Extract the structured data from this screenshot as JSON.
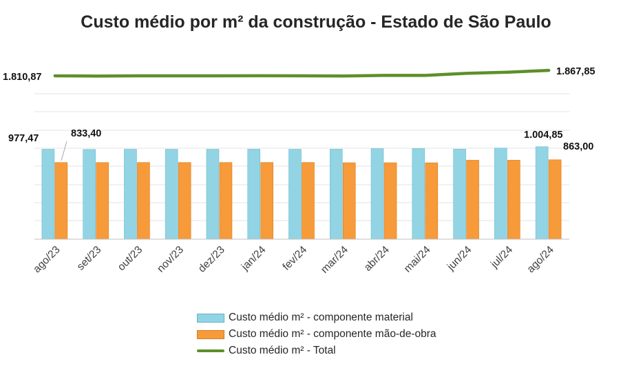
{
  "chart_data": {
    "type": "bar",
    "title": "Custo médio por m² da construção - Estado de São Paulo",
    "categories": [
      "ago/23",
      "set/23",
      "out/23",
      "nov/23",
      "dez/23",
      "jan/24",
      "fev/24",
      "mar/24",
      "abr/24",
      "mai/24",
      "jun/24",
      "jul/24",
      "ago/24"
    ],
    "series": [
      {
        "name": "Custo médio m² - componente material",
        "type": "bar",
        "color": "#92d4e4",
        "values": [
          977.47,
          975.2,
          977.6,
          977.3,
          977.5,
          978.0,
          977.4,
          978.1,
          984.3,
          985.2,
          978.5,
          990.2,
          1004.85
        ]
      },
      {
        "name": "Custo médio m² - componente mão-de-obra",
        "type": "bar",
        "color": "#f79a3a",
        "values": [
          833.4,
          833.1,
          833.4,
          833.4,
          833.4,
          833.6,
          833.8,
          830.9,
          830.8,
          830.4,
          858.4,
          858.7,
          863.0
        ]
      },
      {
        "name": "Custo médio m² - Total",
        "type": "line",
        "color": "#5e8f2a",
        "values": [
          1810.87,
          1808.3,
          1811.0,
          1810.7,
          1810.9,
          1811.6,
          1811.2,
          1809.0,
          1815.1,
          1815.6,
          1836.9,
          1848.9,
          1867.85
        ]
      }
    ],
    "data_labels": {
      "material_first": "977,47",
      "material_last": "1.004,85",
      "labor_first": "833,40",
      "labor_last": "863,00",
      "total_first": "1.810,87",
      "total_last": "1.867,85"
    },
    "grid": true,
    "legend": "bottom"
  }
}
